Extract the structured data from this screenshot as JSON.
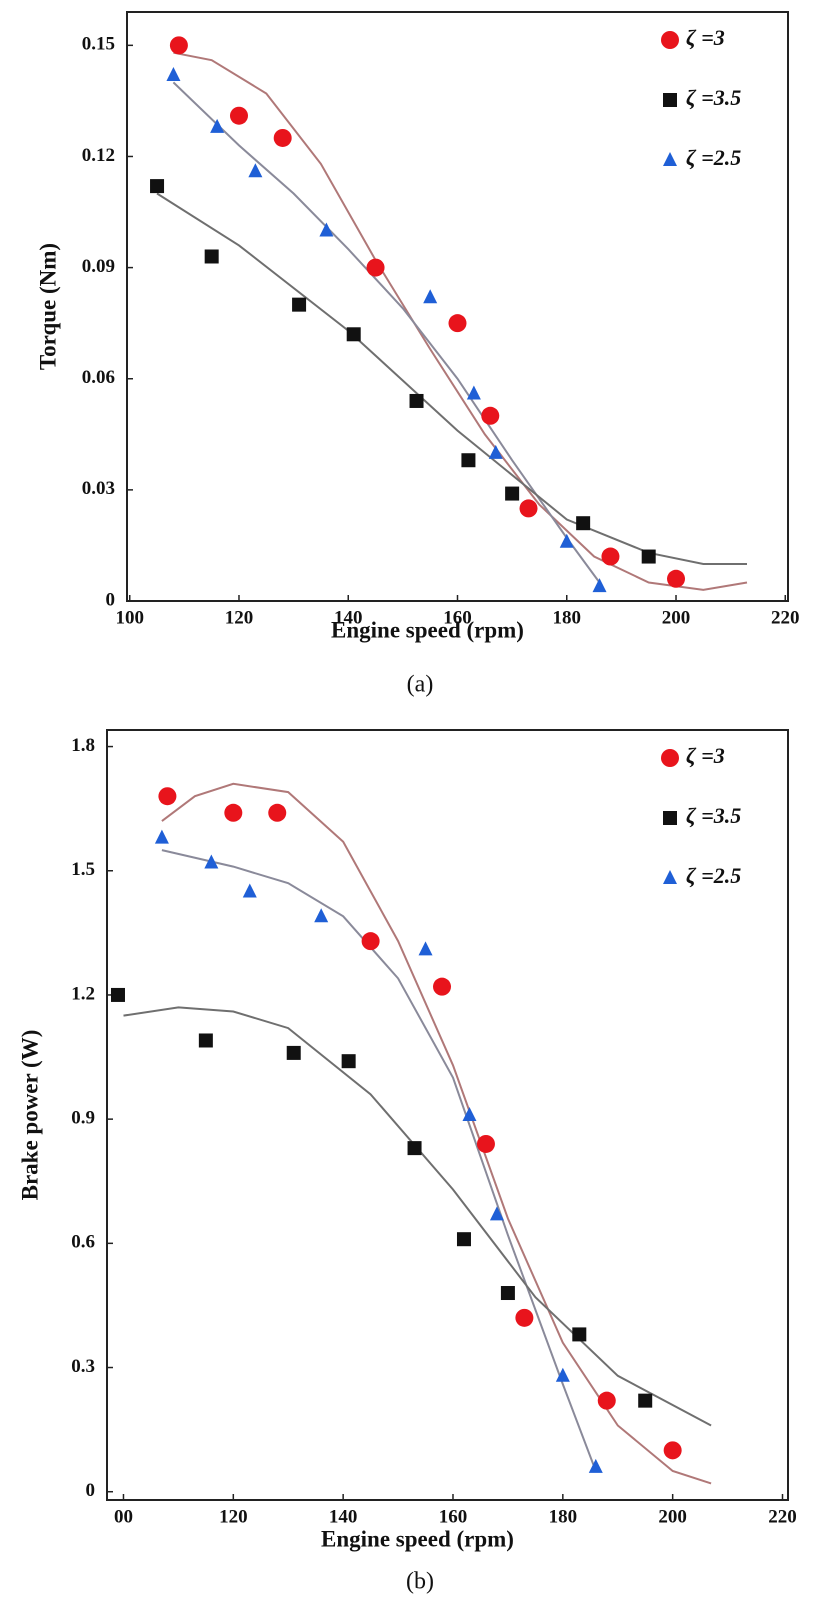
{
  "chart_data": [
    {
      "type": "scatter",
      "caption": "(a)",
      "xlabel": "Engine speed (rpm)",
      "ylabel": "Torque (Nm)",
      "xlim": [
        99.5,
        220.5
      ],
      "ylim": [
        0,
        0.159
      ],
      "xticks": [
        100,
        120,
        140,
        160,
        180,
        200,
        220
      ],
      "yticks": [
        0,
        0.03,
        0.06,
        0.09,
        0.12,
        0.15
      ],
      "legend": "upper right",
      "series": [
        {
          "name": "ζ =3",
          "color": "#e8141c",
          "marker": "circle",
          "x": [
            109,
            120,
            128,
            145,
            160,
            166,
            173,
            188,
            200
          ],
          "values": [
            0.15,
            0.131,
            0.125,
            0.09,
            0.075,
            0.05,
            0.025,
            0.012,
            0.006
          ]
        },
        {
          "name": "ζ =3.5",
          "color": "#111111",
          "marker": "square",
          "x": [
            105,
            115,
            131,
            141,
            152.5,
            162,
            170,
            183,
            195
          ],
          "values": [
            0.112,
            0.093,
            0.08,
            0.072,
            0.054,
            0.038,
            0.029,
            0.021,
            0.012
          ]
        },
        {
          "name": "ζ =2.5",
          "color": "#1f5fd6",
          "marker": "triangle",
          "x": [
            108,
            116,
            123,
            136,
            155,
            163,
            167,
            180,
            186
          ],
          "values": [
            0.142,
            0.128,
            0.116,
            0.1,
            0.082,
            0.056,
            0.04,
            0.016,
            0.004
          ]
        }
      ],
      "fits": [
        {
          "color": "#b07878",
          "x": [
            108,
            115,
            125,
            135,
            145,
            155,
            165,
            175,
            185,
            195,
            205,
            213
          ],
          "values": [
            0.148,
            0.146,
            0.137,
            0.118,
            0.092,
            0.068,
            0.045,
            0.026,
            0.012,
            0.005,
            0.003,
            0.005
          ]
        },
        {
          "color": "#8a8a9a",
          "x": [
            108,
            120,
            130,
            140,
            150,
            160,
            170,
            180,
            186
          ],
          "values": [
            0.14,
            0.123,
            0.11,
            0.095,
            0.079,
            0.06,
            0.038,
            0.017,
            0.005
          ]
        },
        {
          "color": "#6f6f6f",
          "x": [
            105,
            120,
            140,
            160,
            180,
            195,
            205,
            213
          ],
          "values": [
            0.11,
            0.096,
            0.073,
            0.046,
            0.022,
            0.013,
            0.01,
            0.01
          ]
        }
      ]
    },
    {
      "type": "scatter",
      "caption": "(b)",
      "xlabel": "Engine speed (rpm)",
      "ylabel": "Brake power (W)",
      "xlim": [
        97,
        221
      ],
      "ylim": [
        -0.02,
        1.84
      ],
      "xticks": [
        {
          "value": 100,
          "label": "00"
        },
        120,
        140,
        160,
        180,
        200,
        220
      ],
      "yticks": [
        0,
        0.3,
        0.6,
        0.9,
        1.2,
        1.5,
        1.8
      ],
      "legend": "upper right",
      "series": [
        {
          "name": "ζ =3",
          "color": "#e8141c",
          "marker": "circle",
          "x": [
            108,
            120,
            128,
            145,
            158,
            166,
            173,
            188,
            200
          ],
          "values": [
            1.68,
            1.64,
            1.64,
            1.33,
            1.22,
            0.84,
            0.42,
            0.22,
            0.1
          ]
        },
        {
          "name": "ζ =3.5",
          "color": "#111111",
          "marker": "square",
          "x": [
            99,
            115,
            131,
            141,
            153,
            162,
            170,
            183,
            195
          ],
          "values": [
            1.2,
            1.09,
            1.06,
            1.04,
            0.83,
            0.61,
            0.48,
            0.38,
            0.22
          ]
        },
        {
          "name": "ζ =2.5",
          "color": "#1f5fd6",
          "marker": "triangle",
          "x": [
            107,
            116,
            123,
            136,
            155,
            163,
            168,
            180,
            186
          ],
          "values": [
            1.58,
            1.52,
            1.45,
            1.39,
            1.31,
            0.91,
            0.67,
            0.28,
            0.06
          ]
        }
      ],
      "fits": [
        {
          "color": "#b07878",
          "x": [
            107,
            113,
            120,
            130,
            140,
            150,
            160,
            170,
            180,
            190,
            200,
            207
          ],
          "values": [
            1.62,
            1.68,
            1.71,
            1.69,
            1.57,
            1.33,
            1.03,
            0.66,
            0.36,
            0.16,
            0.05,
            0.02
          ]
        },
        {
          "color": "#8a8a9a",
          "x": [
            107,
            120,
            130,
            140,
            150,
            160,
            170,
            180,
            186
          ],
          "values": [
            1.55,
            1.51,
            1.47,
            1.39,
            1.24,
            1.0,
            0.62,
            0.26,
            0.05
          ]
        },
        {
          "color": "#6f6f6f",
          "x": [
            100,
            110,
            120,
            130,
            145,
            160,
            175,
            190,
            207
          ],
          "values": [
            1.15,
            1.17,
            1.16,
            1.12,
            0.96,
            0.73,
            0.47,
            0.28,
            0.16
          ]
        }
      ]
    }
  ]
}
